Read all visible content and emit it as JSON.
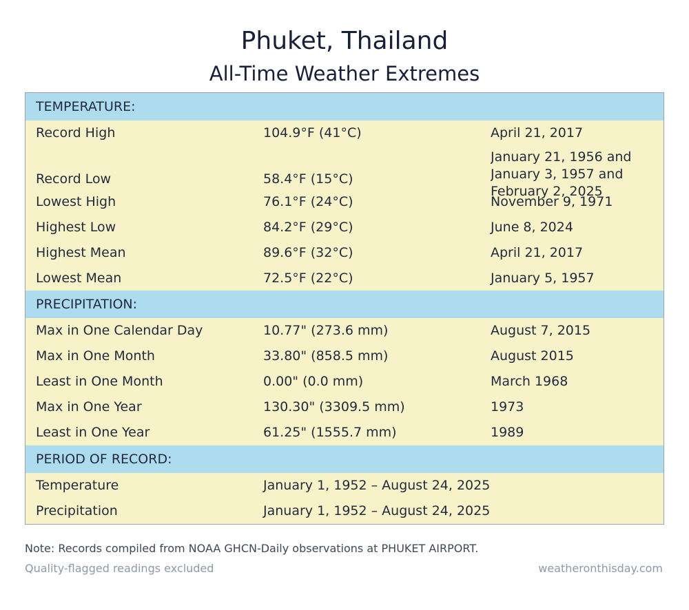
{
  "header": {
    "title": "Phuket, Thailand",
    "subtitle": "All-Time Weather Extremes"
  },
  "colors": {
    "section_header_bg": "#addcef",
    "row_bg": "#f7f2c8",
    "text": "#1f2a3c",
    "muted": "#8e99a8"
  },
  "temperature": {
    "heading": "TEMPERATURE:",
    "rows": [
      {
        "label": "Record High",
        "value": "104.9°F (41°C)",
        "date": "April 21, 2017"
      },
      {
        "label": "Record Low",
        "value": "58.4°F (15°C)",
        "date": "January 21, 1956 and January 3, 1957 and February 2, 2025"
      },
      {
        "label": "Lowest High",
        "value": "76.1°F (24°C)",
        "date": "November 9, 1971"
      },
      {
        "label": "Highest Low",
        "value": "84.2°F (29°C)",
        "date": "June 8, 2024"
      },
      {
        "label": "Highest Mean",
        "value": "89.6°F (32°C)",
        "date": "April 21, 2017"
      },
      {
        "label": "Lowest Mean",
        "value": "72.5°F (22°C)",
        "date": "January 5, 1957"
      }
    ]
  },
  "precipitation": {
    "heading": "PRECIPITATION:",
    "rows": [
      {
        "label": "Max in One Calendar Day",
        "value": "10.77\" (273.6 mm)",
        "date": "August 7, 2015"
      },
      {
        "label": "Max in One Month",
        "value": "33.80\" (858.5 mm)",
        "date": "August 2015"
      },
      {
        "label": "Least in One Month",
        "value": "0.00\" (0.0 mm)",
        "date": "March 1968"
      },
      {
        "label": "Max in One Year",
        "value": "130.30\" (3309.5 mm)",
        "date": "1973"
      },
      {
        "label": "Least in One Year",
        "value": "61.25\" (1555.7 mm)",
        "date": "1989"
      }
    ]
  },
  "period": {
    "heading": "PERIOD OF RECORD:",
    "rows": [
      {
        "label": "Temperature",
        "value": "January 1, 1952 – August 24, 2025"
      },
      {
        "label": "Precipitation",
        "value": "January 1, 1952 – August 24, 2025"
      }
    ]
  },
  "footer": {
    "note": "Note: Records compiled from NOAA GHCN-Daily observations at PHUKET AIRPORT.",
    "left": "Quality-flagged readings excluded",
    "right": "weatheronthisday.com"
  }
}
